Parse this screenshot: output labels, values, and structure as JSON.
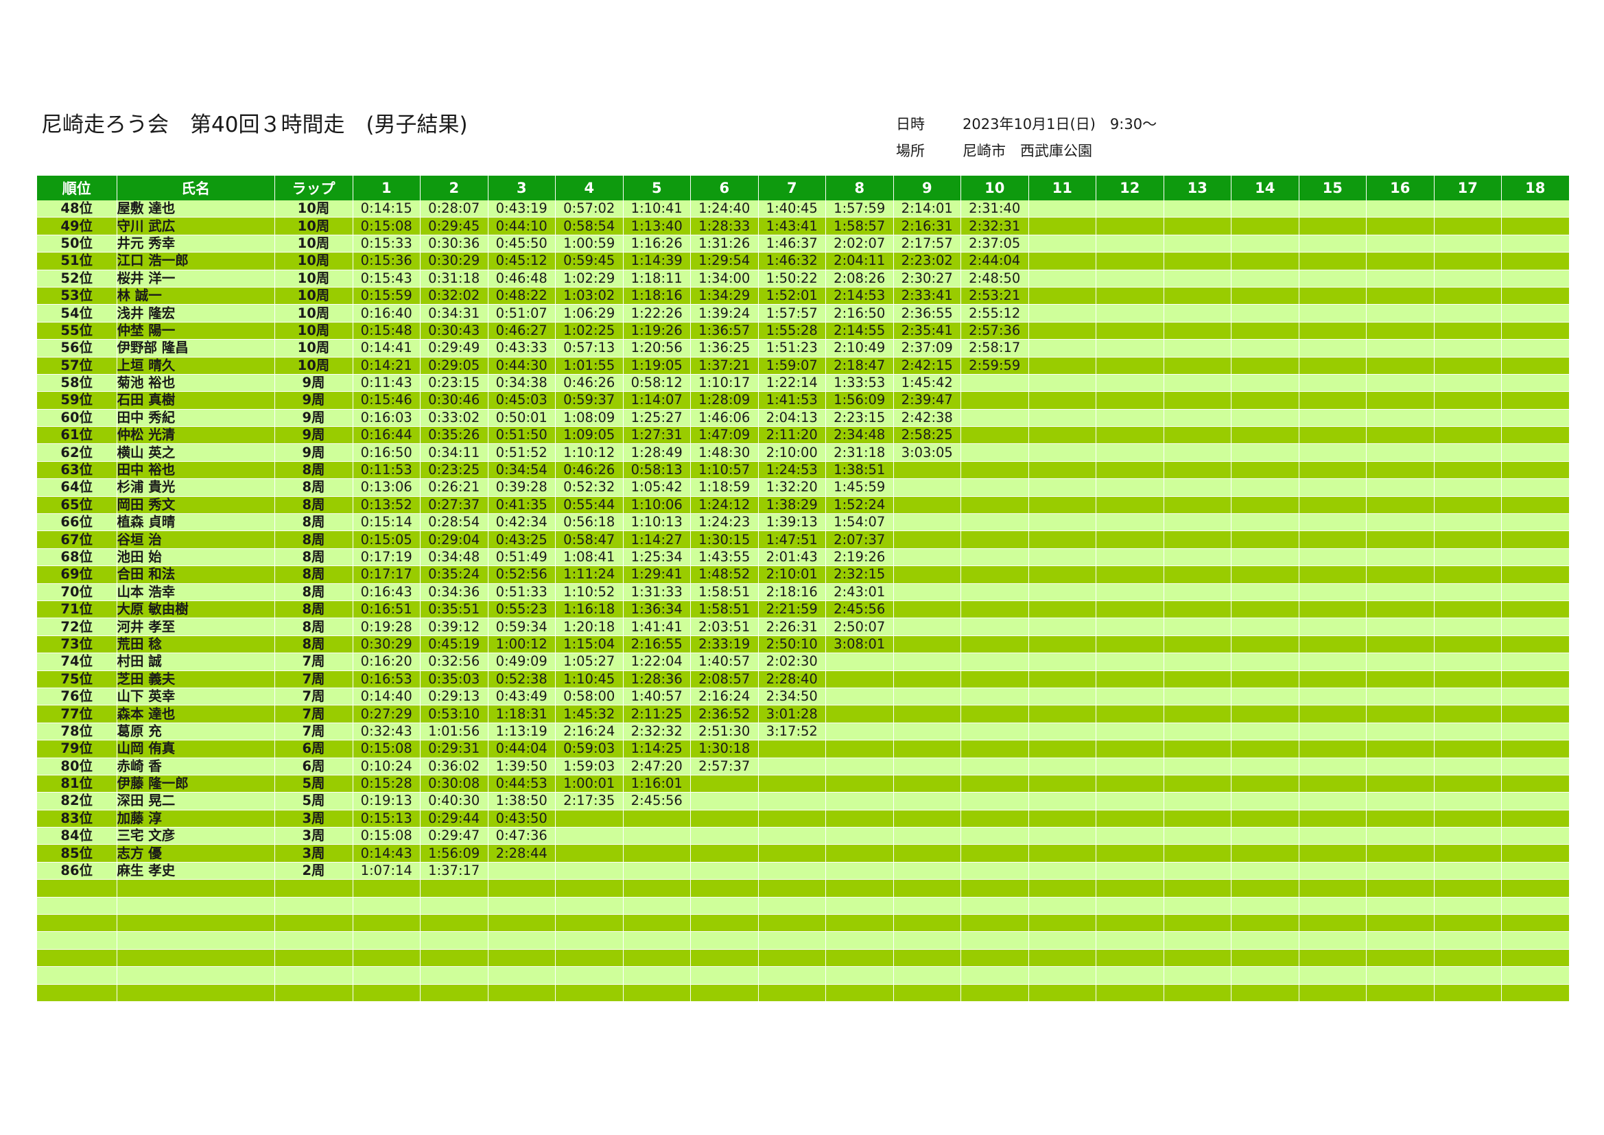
{
  "header": {
    "title": "尼崎走ろう会　第40回３時間走　(男子結果)",
    "date_label": "日時",
    "date_value": "2023年10月1日(日)　9:30～",
    "place_label": "場所",
    "place_value": "尼崎市　西武庫公園"
  },
  "table": {
    "columns": [
      "順位",
      "氏名",
      "ラップ",
      "1",
      "2",
      "3",
      "4",
      "5",
      "6",
      "7",
      "8",
      "9",
      "10",
      "11",
      "12",
      "13",
      "14",
      "15",
      "16",
      "17",
      "18"
    ],
    "rows": [
      {
        "rank": "48位",
        "name": "屋敷 達也",
        "laps": "10周",
        "times": [
          "0:14:15",
          "0:28:07",
          "0:43:19",
          "0:57:02",
          "1:10:41",
          "1:24:40",
          "1:40:45",
          "1:57:59",
          "2:14:01",
          "2:31:40"
        ]
      },
      {
        "rank": "49位",
        "name": "守川 武広",
        "laps": "10周",
        "times": [
          "0:15:08",
          "0:29:45",
          "0:44:10",
          "0:58:54",
          "1:13:40",
          "1:28:33",
          "1:43:41",
          "1:58:57",
          "2:16:31",
          "2:32:31"
        ]
      },
      {
        "rank": "50位",
        "name": "井元 秀幸",
        "laps": "10周",
        "times": [
          "0:15:33",
          "0:30:36",
          "0:45:50",
          "1:00:59",
          "1:16:26",
          "1:31:26",
          "1:46:37",
          "2:02:07",
          "2:17:57",
          "2:37:05"
        ]
      },
      {
        "rank": "51位",
        "name": "江口 浩一郎",
        "laps": "10周",
        "times": [
          "0:15:36",
          "0:30:29",
          "0:45:12",
          "0:59:45",
          "1:14:39",
          "1:29:54",
          "1:46:32",
          "2:04:11",
          "2:23:02",
          "2:44:04"
        ]
      },
      {
        "rank": "52位",
        "name": "桜井 洋一",
        "laps": "10周",
        "times": [
          "0:15:43",
          "0:31:18",
          "0:46:48",
          "1:02:29",
          "1:18:11",
          "1:34:00",
          "1:50:22",
          "2:08:26",
          "2:30:27",
          "2:48:50"
        ]
      },
      {
        "rank": "53位",
        "name": "林 誠一",
        "laps": "10周",
        "times": [
          "0:15:59",
          "0:32:02",
          "0:48:22",
          "1:03:02",
          "1:18:16",
          "1:34:29",
          "1:52:01",
          "2:14:53",
          "2:33:41",
          "2:53:21"
        ]
      },
      {
        "rank": "54位",
        "name": "浅井 隆宏",
        "laps": "10周",
        "times": [
          "0:16:40",
          "0:34:31",
          "0:51:07",
          "1:06:29",
          "1:22:26",
          "1:39:24",
          "1:57:57",
          "2:16:50",
          "2:36:55",
          "2:55:12"
        ]
      },
      {
        "rank": "55位",
        "name": "仲埜 陽一",
        "laps": "10周",
        "times": [
          "0:15:48",
          "0:30:43",
          "0:46:27",
          "1:02:25",
          "1:19:26",
          "1:36:57",
          "1:55:28",
          "2:14:55",
          "2:35:41",
          "2:57:36"
        ]
      },
      {
        "rank": "56位",
        "name": "伊野部 隆昌",
        "laps": "10周",
        "times": [
          "0:14:41",
          "0:29:49",
          "0:43:33",
          "0:57:13",
          "1:20:56",
          "1:36:25",
          "1:51:23",
          "2:10:49",
          "2:37:09",
          "2:58:17"
        ]
      },
      {
        "rank": "57位",
        "name": "上垣 晴久",
        "laps": "10周",
        "times": [
          "0:14:21",
          "0:29:05",
          "0:44:30",
          "1:01:55",
          "1:19:05",
          "1:37:21",
          "1:59:07",
          "2:18:47",
          "2:42:15",
          "2:59:59"
        ]
      },
      {
        "rank": "58位",
        "name": "菊池 裕也",
        "laps": "9周",
        "times": [
          "0:11:43",
          "0:23:15",
          "0:34:38",
          "0:46:26",
          "0:58:12",
          "1:10:17",
          "1:22:14",
          "1:33:53",
          "1:45:42"
        ]
      },
      {
        "rank": "59位",
        "name": "石田 真樹",
        "laps": "9周",
        "times": [
          "0:15:46",
          "0:30:46",
          "0:45:03",
          "0:59:37",
          "1:14:07",
          "1:28:09",
          "1:41:53",
          "1:56:09",
          "2:39:47"
        ]
      },
      {
        "rank": "60位",
        "name": "田中 秀紀",
        "laps": "9周",
        "times": [
          "0:16:03",
          "0:33:02",
          "0:50:01",
          "1:08:09",
          "1:25:27",
          "1:46:06",
          "2:04:13",
          "2:23:15",
          "2:42:38"
        ]
      },
      {
        "rank": "61位",
        "name": "仲松 光清",
        "laps": "9周",
        "times": [
          "0:16:44",
          "0:35:26",
          "0:51:50",
          "1:09:05",
          "1:27:31",
          "1:47:09",
          "2:11:20",
          "2:34:48",
          "2:58:25"
        ]
      },
      {
        "rank": "62位",
        "name": "横山 英之",
        "laps": "9周",
        "times": [
          "0:16:50",
          "0:34:11",
          "0:51:52",
          "1:10:12",
          "1:28:49",
          "1:48:30",
          "2:10:00",
          "2:31:18",
          "3:03:05"
        ]
      },
      {
        "rank": "63位",
        "name": "田中 裕也",
        "laps": "8周",
        "times": [
          "0:11:53",
          "0:23:25",
          "0:34:54",
          "0:46:26",
          "0:58:13",
          "1:10:57",
          "1:24:53",
          "1:38:51"
        ]
      },
      {
        "rank": "64位",
        "name": "杉浦 貴光",
        "laps": "8周",
        "times": [
          "0:13:06",
          "0:26:21",
          "0:39:28",
          "0:52:32",
          "1:05:42",
          "1:18:59",
          "1:32:20",
          "1:45:59"
        ]
      },
      {
        "rank": "65位",
        "name": "岡田 秀文",
        "laps": "8周",
        "times": [
          "0:13:52",
          "0:27:37",
          "0:41:35",
          "0:55:44",
          "1:10:06",
          "1:24:12",
          "1:38:29",
          "1:52:24"
        ]
      },
      {
        "rank": "66位",
        "name": "植森 貞晴",
        "laps": "8周",
        "times": [
          "0:15:14",
          "0:28:54",
          "0:42:34",
          "0:56:18",
          "1:10:13",
          "1:24:23",
          "1:39:13",
          "1:54:07"
        ]
      },
      {
        "rank": "67位",
        "name": "谷垣 治",
        "laps": "8周",
        "times": [
          "0:15:05",
          "0:29:04",
          "0:43:25",
          "0:58:47",
          "1:14:27",
          "1:30:15",
          "1:47:51",
          "2:07:37"
        ]
      },
      {
        "rank": "68位",
        "name": "池田 始",
        "laps": "8周",
        "times": [
          "0:17:19",
          "0:34:48",
          "0:51:49",
          "1:08:41",
          "1:25:34",
          "1:43:55",
          "2:01:43",
          "2:19:26"
        ]
      },
      {
        "rank": "69位",
        "name": "合田 和法",
        "laps": "8周",
        "times": [
          "0:17:17",
          "0:35:24",
          "0:52:56",
          "1:11:24",
          "1:29:41",
          "1:48:52",
          "2:10:01",
          "2:32:15"
        ]
      },
      {
        "rank": "70位",
        "name": "山本 浩幸",
        "laps": "8周",
        "times": [
          "0:16:43",
          "0:34:36",
          "0:51:33",
          "1:10:52",
          "1:31:33",
          "1:58:51",
          "2:18:16",
          "2:43:01"
        ]
      },
      {
        "rank": "71位",
        "name": "大原 敏由樹",
        "laps": "8周",
        "times": [
          "0:16:51",
          "0:35:51",
          "0:55:23",
          "1:16:18",
          "1:36:34",
          "1:58:51",
          "2:21:59",
          "2:45:56"
        ]
      },
      {
        "rank": "72位",
        "name": "河井 孝至",
        "laps": "8周",
        "times": [
          "0:19:28",
          "0:39:12",
          "0:59:34",
          "1:20:18",
          "1:41:41",
          "2:03:51",
          "2:26:31",
          "2:50:07"
        ]
      },
      {
        "rank": "73位",
        "name": "荒田 稔",
        "laps": "8周",
        "times": [
          "0:30:29",
          "0:45:19",
          "1:00:12",
          "1:15:04",
          "2:16:55",
          "2:33:19",
          "2:50:10",
          "3:08:01"
        ]
      },
      {
        "rank": "74位",
        "name": "村田 誠",
        "laps": "7周",
        "times": [
          "0:16:20",
          "0:32:56",
          "0:49:09",
          "1:05:27",
          "1:22:04",
          "1:40:57",
          "2:02:30"
        ]
      },
      {
        "rank": "75位",
        "name": "芝田 義夫",
        "laps": "7周",
        "times": [
          "0:16:53",
          "0:35:03",
          "0:52:38",
          "1:10:45",
          "1:28:36",
          "2:08:57",
          "2:28:40"
        ]
      },
      {
        "rank": "76位",
        "name": "山下 英幸",
        "laps": "7周",
        "times": [
          "0:14:40",
          "0:29:13",
          "0:43:49",
          "0:58:00",
          "1:40:57",
          "2:16:24",
          "2:34:50"
        ]
      },
      {
        "rank": "77位",
        "name": "森本 達也",
        "laps": "7周",
        "times": [
          "0:27:29",
          "0:53:10",
          "1:18:31",
          "1:45:32",
          "2:11:25",
          "2:36:52",
          "3:01:28"
        ]
      },
      {
        "rank": "78位",
        "name": "葛原 充",
        "laps": "7周",
        "times": [
          "0:32:43",
          "1:01:56",
          "1:13:19",
          "2:16:24",
          "2:32:32",
          "2:51:30",
          "3:17:52"
        ]
      },
      {
        "rank": "79位",
        "name": "山岡 侑真",
        "laps": "6周",
        "times": [
          "0:15:08",
          "0:29:31",
          "0:44:04",
          "0:59:03",
          "1:14:25",
          "1:30:18"
        ]
      },
      {
        "rank": "80位",
        "name": "赤崎 香",
        "laps": "6周",
        "times": [
          "0:10:24",
          "0:36:02",
          "1:39:50",
          "1:59:03",
          "2:47:20",
          "2:57:37"
        ]
      },
      {
        "rank": "81位",
        "name": "伊藤 隆一郎",
        "laps": "5周",
        "times": [
          "0:15:28",
          "0:30:08",
          "0:44:53",
          "1:00:01",
          "1:16:01"
        ]
      },
      {
        "rank": "82位",
        "name": "深田 晃二",
        "laps": "5周",
        "times": [
          "0:19:13",
          "0:40:30",
          "1:38:50",
          "2:17:35",
          "2:45:56"
        ]
      },
      {
        "rank": "83位",
        "name": "加藤 淳",
        "laps": "3周",
        "times": [
          "0:15:13",
          "0:29:44",
          "0:43:50"
        ]
      },
      {
        "rank": "84位",
        "name": "三宅 文彦",
        "laps": "3周",
        "times": [
          "0:15:08",
          "0:29:47",
          "0:47:36"
        ]
      },
      {
        "rank": "85位",
        "name": "志方 優",
        "laps": "3周",
        "times": [
          "0:14:43",
          "1:56:09",
          "2:28:44"
        ]
      },
      {
        "rank": "86位",
        "name": "麻生 孝史",
        "laps": "2周",
        "times": [
          "1:07:14",
          "1:37:17"
        ]
      }
    ]
  }
}
